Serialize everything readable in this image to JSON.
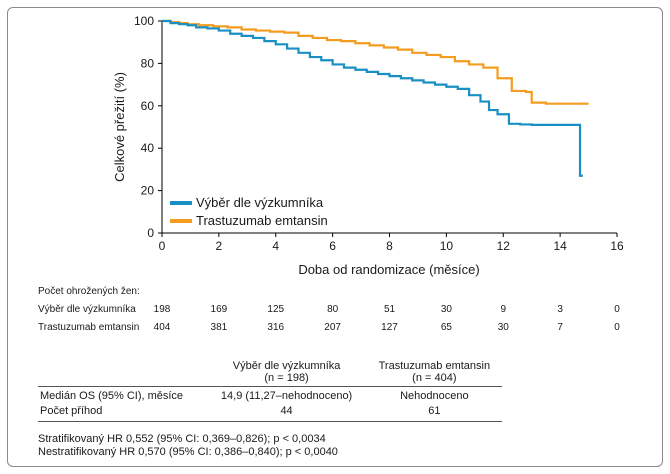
{
  "chart_data": {
    "type": "line",
    "xlabel": "Doba od randomizace (měsíce)",
    "ylabel": "Celkové přežití (%)",
    "xlim": [
      0,
      16
    ],
    "ylim": [
      0,
      100
    ],
    "xticks": [
      0,
      2,
      4,
      6,
      8,
      10,
      12,
      14,
      16
    ],
    "yticks": [
      0,
      20,
      40,
      60,
      80,
      100
    ],
    "legend_position": "bottom-left",
    "series": [
      {
        "name": "Výběr dle výzkumníka",
        "color": "#1a8fc4",
        "x": [
          0,
          0.3,
          0.6,
          0.9,
          1.2,
          1.6,
          2.0,
          2.4,
          2.8,
          3.2,
          3.6,
          4.0,
          4.4,
          4.8,
          5.2,
          5.6,
          6.0,
          6.4,
          6.8,
          7.2,
          7.6,
          8.0,
          8.4,
          8.8,
          9.2,
          9.6,
          10.0,
          10.4,
          10.8,
          11.2,
          11.5,
          11.8,
          12.2,
          12.6,
          13.0,
          13.6,
          14.2,
          14.7,
          14.7,
          14.8
        ],
        "values": [
          100,
          99,
          98.5,
          98,
          97,
          96.5,
          95.5,
          94,
          93,
          92,
          90.5,
          89,
          87,
          85,
          83,
          81.5,
          79.5,
          78,
          77,
          76,
          75,
          74,
          73,
          72,
          71,
          70,
          69,
          68,
          65,
          62,
          58,
          56,
          51.5,
          51.2,
          51,
          51,
          51,
          51,
          27,
          27
        ]
      },
      {
        "name": "Trastuzumab emtansin",
        "color": "#f39c1f",
        "x": [
          0,
          0.3,
          0.6,
          0.9,
          1.3,
          1.8,
          2.3,
          2.8,
          3.3,
          3.8,
          4.3,
          4.8,
          5.3,
          5.8,
          6.3,
          6.8,
          7.3,
          7.8,
          8.3,
          8.8,
          9.3,
          9.8,
          10.3,
          10.8,
          11.3,
          11.8,
          12.3,
          12.8,
          13.0,
          13.5,
          14.0,
          14.5,
          15.0
        ],
        "values": [
          100,
          99.5,
          99,
          98.5,
          98,
          97.5,
          97,
          96,
          95.5,
          95,
          94.5,
          93,
          92,
          91,
          90.5,
          89.5,
          88.5,
          87.5,
          86.5,
          85,
          84,
          83,
          81,
          79.5,
          78,
          73,
          67,
          66.5,
          61.5,
          61,
          61,
          61,
          61
        ]
      }
    ]
  },
  "risk_table": {
    "title": "Počet ohrožených žen:",
    "rows": [
      {
        "label": "Výběr dle výzkumníka",
        "values": [
          "198",
          "169",
          "125",
          "80",
          "51",
          "30",
          "9",
          "3",
          "0"
        ]
      },
      {
        "label": "Trastuzumab emtansin",
        "values": [
          "404",
          "381",
          "316",
          "207",
          "127",
          "65",
          "30",
          "7",
          "0"
        ]
      }
    ]
  },
  "summary_table": {
    "col_a_title": "Výběr dle výzkumníka",
    "col_a_n": "(n = 198)",
    "col_b_title": "Trastuzumab emtansin",
    "col_b_n": "(n = 404)",
    "rows": [
      {
        "label": "Medián OS (95% CI), měsíce",
        "a": "14,9 (11,27–nehodnoceno)",
        "b": "Nehodnoceno"
      },
      {
        "label": "Počet příhod",
        "a": "44",
        "b": "61"
      }
    ]
  },
  "footnotes": [
    "Stratifikovaný HR 0,552 (95% CI: 0,369–0,826); p < 0,0034",
    "Nestratifikovaný HR 0,570 (95% CI: 0,386–0,840); p < 0,0040"
  ]
}
